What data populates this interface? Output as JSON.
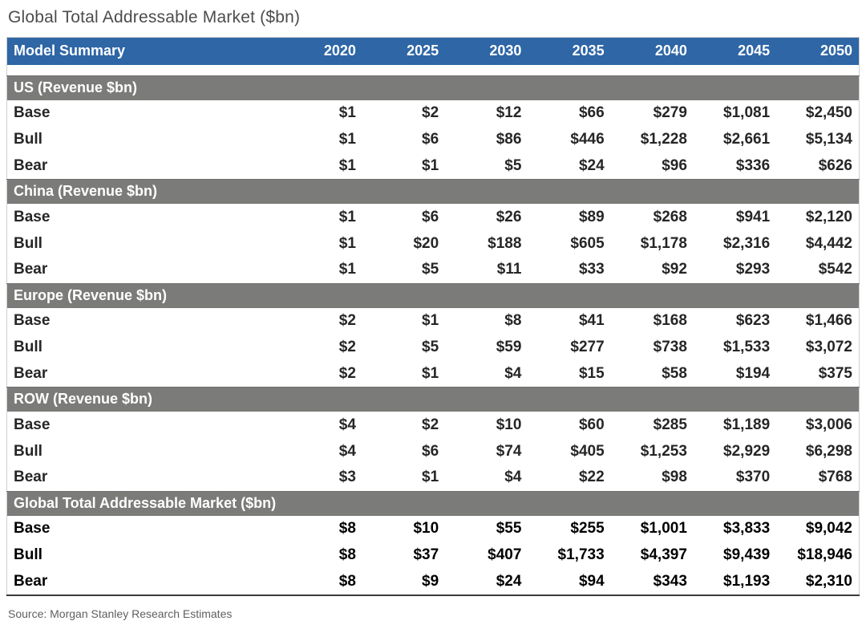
{
  "page": {
    "title": "Global Total Addressable Market ($bn)",
    "source": "Source: Morgan Stanley Research Estimates"
  },
  "colors": {
    "header_blue": "#2E66A6",
    "section_gray": "#7B7B79"
  },
  "chart_data": {
    "type": "table",
    "title": "Global Total Addressable Market ($bn)",
    "columns": [
      "Model Summary",
      "2020",
      "2025",
      "2030",
      "2035",
      "2040",
      "2045",
      "2050"
    ],
    "sections": [
      {
        "label": "US (Revenue $bn)",
        "emphasis": false,
        "rows": [
          {
            "label": "Base",
            "values": [
              "$1",
              "$2",
              "$12",
              "$66",
              "$279",
              "$1,081",
              "$2,450"
            ]
          },
          {
            "label": "Bull",
            "values": [
              "$1",
              "$6",
              "$86",
              "$446",
              "$1,228",
              "$2,661",
              "$5,134"
            ]
          },
          {
            "label": "Bear",
            "values": [
              "$1",
              "$1",
              "$5",
              "$24",
              "$96",
              "$336",
              "$626"
            ]
          }
        ]
      },
      {
        "label": "China (Revenue $bn)",
        "emphasis": false,
        "rows": [
          {
            "label": "Base",
            "values": [
              "$1",
              "$6",
              "$26",
              "$89",
              "$268",
              "$941",
              "$2,120"
            ]
          },
          {
            "label": "Bull",
            "values": [
              "$1",
              "$20",
              "$188",
              "$605",
              "$1,178",
              "$2,316",
              "$4,442"
            ]
          },
          {
            "label": "Bear",
            "values": [
              "$1",
              "$5",
              "$11",
              "$33",
              "$92",
              "$293",
              "$542"
            ]
          }
        ]
      },
      {
        "label": "Europe (Revenue $bn)",
        "emphasis": false,
        "rows": [
          {
            "label": "Base",
            "values": [
              "$2",
              "$1",
              "$8",
              "$41",
              "$168",
              "$623",
              "$1,466"
            ]
          },
          {
            "label": "Bull",
            "values": [
              "$2",
              "$5",
              "$59",
              "$277",
              "$738",
              "$1,533",
              "$3,072"
            ]
          },
          {
            "label": "Bear",
            "values": [
              "$2",
              "$1",
              "$4",
              "$15",
              "$58",
              "$194",
              "$375"
            ]
          }
        ]
      },
      {
        "label": "ROW (Revenue $bn)",
        "emphasis": false,
        "rows": [
          {
            "label": "Base",
            "values": [
              "$4",
              "$2",
              "$10",
              "$60",
              "$285",
              "$1,189",
              "$3,006"
            ]
          },
          {
            "label": "Bull",
            "values": [
              "$4",
              "$6",
              "$74",
              "$405",
              "$1,253",
              "$2,929",
              "$6,298"
            ]
          },
          {
            "label": "Bear",
            "values": [
              "$3",
              "$1",
              "$4",
              "$22",
              "$98",
              "$370",
              "$768"
            ]
          }
        ]
      },
      {
        "label": "Global Total Addressable Market ($bn)",
        "emphasis": true,
        "rows": [
          {
            "label": "Base",
            "values": [
              "$8",
              "$10",
              "$55",
              "$255",
              "$1,001",
              "$3,833",
              "$9,042"
            ]
          },
          {
            "label": "Bull",
            "values": [
              "$8",
              "$37",
              "$407",
              "$1,733",
              "$4,397",
              "$9,439",
              "$18,946"
            ]
          },
          {
            "label": "Bear",
            "values": [
              "$8",
              "$9",
              "$24",
              "$94",
              "$343",
              "$1,193",
              "$2,310"
            ]
          }
        ]
      }
    ]
  }
}
